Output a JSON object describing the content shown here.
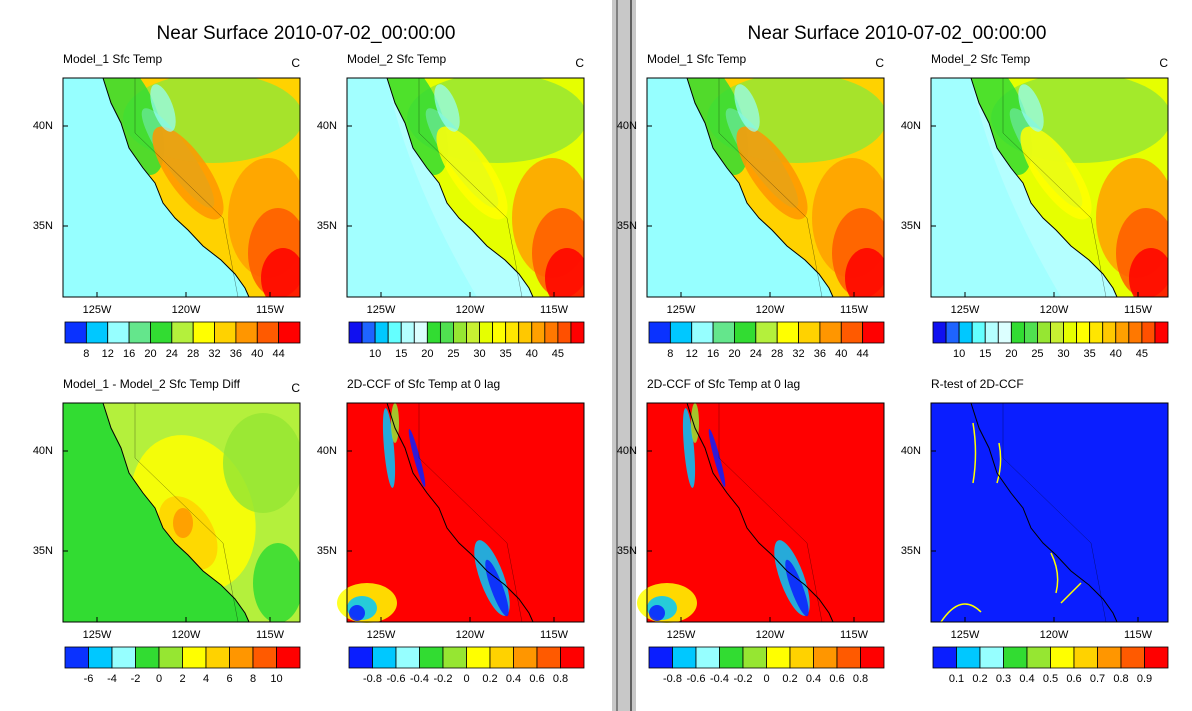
{
  "windows": [
    {
      "title": "Near Surface 2010-07-02_00:00:00",
      "panels": [
        {
          "title": "Model_1 Sfc Temp",
          "units": "C",
          "lat_labels": [
            "40N",
            "35N"
          ],
          "lon_labels": [
            "125W",
            "120W",
            "115W"
          ],
          "colorbar": {
            "colors": [
              "#0a32ff",
              "#00c8ff",
              "#96ffff",
              "#64e68c",
              "#32dc32",
              "#b4f03c",
              "#ffff00",
              "#ffd200",
              "#ff9600",
              "#ff5a00",
              "#ff0000"
            ],
            "labels": [
              "8",
              "12",
              "16",
              "20",
              "24",
              "28",
              "32",
              "36",
              "40",
              "44"
            ]
          }
        },
        {
          "title": "Model_2 Sfc Temp",
          "units": "C",
          "lat_labels": [
            "40N",
            "35N"
          ],
          "lon_labels": [
            "125W",
            "120W",
            "115W"
          ],
          "colorbar": {
            "colors": [
              "#1010f0",
              "#1e64ff",
              "#00c8ff",
              "#64ffff",
              "#b4ffff",
              "#dcffff",
              "#32dc32",
              "#50e050",
              "#96e632",
              "#c8f032",
              "#e6ff00",
              "#ffff00",
              "#ffe600",
              "#ffc800",
              "#ffa000",
              "#ff7800",
              "#ff5000",
              "#ff0000"
            ],
            "labels": [
              "10",
              "15",
              "20",
              "25",
              "30",
              "35",
              "40",
              "45"
            ]
          }
        },
        {
          "title": "Model_1  -  Model_2 Sfc Temp Diff",
          "units": "C",
          "lat_labels": [
            "40N",
            "35N"
          ],
          "lon_labels": [
            "125W",
            "120W",
            "115W"
          ],
          "colorbar": {
            "colors": [
              "#0a32ff",
              "#00c8ff",
              "#96ffff",
              "#32dc32",
              "#96e632",
              "#ffff00",
              "#ffd200",
              "#ff9600",
              "#ff5a00",
              "#ff0000"
            ],
            "labels": [
              "-6",
              "-4",
              "-2",
              "0",
              "2",
              "4",
              "6",
              "8",
              "10"
            ]
          }
        },
        {
          "title": "2D-CCF of Sfc Temp at 0 lag",
          "lat_labels": [
            "40N",
            "35N"
          ],
          "lon_labels": [
            "125W",
            "120W",
            "115W"
          ],
          "colorbar": {
            "colors": [
              "#0a1eff",
              "#00c8ff",
              "#96ffff",
              "#32dc32",
              "#96e632",
              "#ffff00",
              "#ffd200",
              "#ff9600",
              "#ff5a00",
              "#ff0000"
            ],
            "labels": [
              "-0.8",
              "-0.6",
              "-0.4",
              "-0.2",
              "0",
              "0.2",
              "0.4",
              "0.6",
              "0.8"
            ]
          }
        }
      ]
    },
    {
      "title": "Near Surface 2010-07-02_00:00:00",
      "panels": [
        {
          "title": "Model_1 Sfc Temp",
          "units": "C",
          "lat_labels": [
            "40N",
            "35N"
          ],
          "lon_labels": [
            "125W",
            "120W",
            "115W"
          ],
          "colorbar": {
            "colors": [
              "#0a32ff",
              "#00c8ff",
              "#96ffff",
              "#64e68c",
              "#32dc32",
              "#b4f03c",
              "#ffff00",
              "#ffd200",
              "#ff9600",
              "#ff5a00",
              "#ff0000"
            ],
            "labels": [
              "8",
              "12",
              "16",
              "20",
              "24",
              "28",
              "32",
              "36",
              "40",
              "44"
            ]
          }
        },
        {
          "title": "Model_2 Sfc Temp",
          "units": "C",
          "lat_labels": [
            "40N",
            "35N"
          ],
          "lon_labels": [
            "125W",
            "120W",
            "115W"
          ],
          "colorbar": {
            "colors": [
              "#1010f0",
              "#1e64ff",
              "#00c8ff",
              "#64ffff",
              "#b4ffff",
              "#dcffff",
              "#32dc32",
              "#50e050",
              "#96e632",
              "#c8f032",
              "#e6ff00",
              "#ffff00",
              "#ffe600",
              "#ffc800",
              "#ffa000",
              "#ff7800",
              "#ff5000",
              "#ff0000"
            ],
            "labels": [
              "10",
              "15",
              "20",
              "25",
              "30",
              "35",
              "40",
              "45"
            ]
          }
        },
        {
          "title": "2D-CCF of Sfc Temp at 0 lag",
          "lat_labels": [
            "40N",
            "35N"
          ],
          "lon_labels": [
            "125W",
            "120W",
            "115W"
          ],
          "colorbar": {
            "colors": [
              "#0a1eff",
              "#00c8ff",
              "#96ffff",
              "#32dc32",
              "#96e632",
              "#ffff00",
              "#ffd200",
              "#ff9600",
              "#ff5a00",
              "#ff0000"
            ],
            "labels": [
              "-0.8",
              "-0.6",
              "-0.4",
              "-0.2",
              "0",
              "0.2",
              "0.4",
              "0.6",
              "0.8"
            ]
          }
        },
        {
          "title": "R-test of 2D-CCF",
          "lat_labels": [
            "40N",
            "35N"
          ],
          "lon_labels": [
            "125W",
            "120W",
            "115W"
          ],
          "colorbar": {
            "colors": [
              "#0a1eff",
              "#00c8ff",
              "#96ffff",
              "#32dc32",
              "#96e632",
              "#ffff00",
              "#ffd200",
              "#ff9600",
              "#ff5a00",
              "#ff0000"
            ],
            "labels": [
              "0.1",
              "0.2",
              "0.3",
              "0.4",
              "0.5",
              "0.6",
              "0.7",
              "0.8",
              "0.9"
            ]
          }
        }
      ]
    }
  ]
}
